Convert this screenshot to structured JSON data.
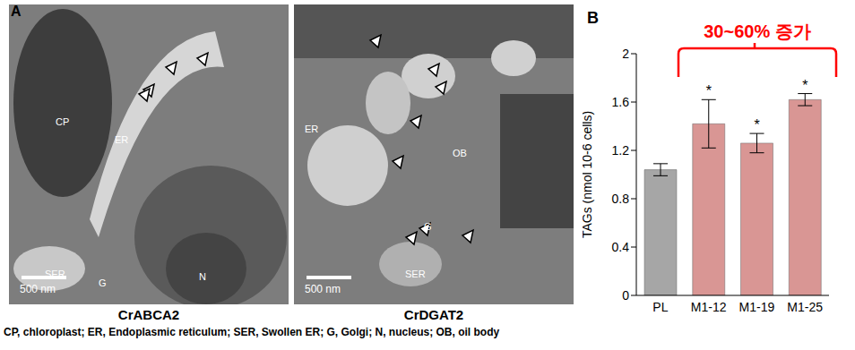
{
  "chart_data": {
    "type": "bar",
    "title": "B",
    "y_label": "TAGs (nmol  10-6 cells)",
    "categories": [
      "PL",
      "M1-12",
      "M1-19",
      "M1-25"
    ],
    "values": [
      1.04,
      1.42,
      1.26,
      1.62
    ],
    "errors": [
      0.05,
      0.2,
      0.08,
      0.05
    ],
    "significance": [
      null,
      "*",
      "*",
      "*"
    ],
    "colors": [
      "#a6a6a6",
      "#d99694",
      "#d99694",
      "#d99694"
    ],
    "ylim": [
      0,
      2
    ],
    "yticks": [
      0,
      0.4,
      0.8,
      1.2,
      1.6,
      2
    ],
    "grid": false,
    "annotation": {
      "text": "30~60% 증가",
      "color": "#ff0000"
    }
  },
  "panel_a": {
    "label": "A",
    "images": [
      {
        "caption": "CrABCA2",
        "scale_bar": "500 nm",
        "labels": [
          "CP",
          "ER",
          "N",
          "SER",
          "G"
        ]
      },
      {
        "caption": "CrDGAT2",
        "scale_bar": "500 nm",
        "labels": [
          "ER",
          "OB",
          "G",
          "SER"
        ]
      }
    ],
    "footnote": "CP, chloroplast; ER, Endoplasmic reticulum; SER, Swollen ER; G, Golgi; N, nucleus; OB, oil body"
  }
}
